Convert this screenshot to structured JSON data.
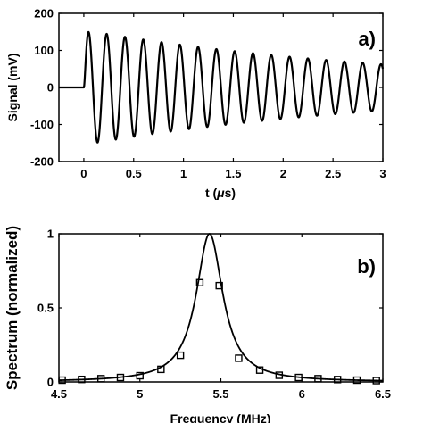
{
  "chart_data": [
    {
      "type": "line",
      "panel_label": "a)",
      "xlabel_prefix": "t (",
      "xlabel_mu": "μ",
      "xlabel_suffix": "s)",
      "ylabel": "Signal (mV)",
      "xlim": [
        -0.25,
        3
      ],
      "ylim": [
        -200,
        200
      ],
      "xticks": [
        0,
        0.5,
        1,
        1.5,
        2,
        2.5,
        3
      ],
      "xtick_labels": [
        "0",
        "0.5",
        "1",
        "1.5",
        "2",
        "2.5",
        "3"
      ],
      "yticks": [
        -200,
        -100,
        0,
        100,
        200
      ],
      "ytick_labels": [
        "-200",
        "-100",
        "0",
        "100",
        "200"
      ],
      "series": [
        {
          "style": "solid-line",
          "color": "#000000",
          "model": "damped-sine",
          "start_time": 0.0,
          "frequency_mhz": 5.45,
          "decay_time_us": 3.3,
          "peak_amplitude_mv": 155
        }
      ]
    },
    {
      "type": "line",
      "panel_label": "b)",
      "xlabel": "Frequency (MHz)",
      "ylabel": "Spectrum (normalized)",
      "xlim": [
        4.5,
        6.5
      ],
      "ylim": [
        0,
        1
      ],
      "xticks": [
        4.5,
        5,
        5.5,
        6,
        6.5
      ],
      "xtick_labels": [
        "4.5",
        "5",
        "5.5",
        "6",
        "6.5"
      ],
      "yticks": [
        0,
        0.5,
        1
      ],
      "ytick_labels": [
        "0",
        "0.5",
        "1"
      ],
      "series": [
        {
          "style": "solid-line",
          "color": "#000000",
          "model": "lorentzian",
          "center_mhz": 5.43,
          "half_width_mhz": 0.1,
          "peak": 1.0
        },
        {
          "style": "open-square-markers",
          "color": "#000000",
          "x": [
            4.52,
            4.64,
            4.76,
            4.88,
            5.0,
            5.13,
            5.25,
            5.37,
            5.49,
            5.61,
            5.74,
            5.86,
            5.98,
            6.1,
            6.22,
            6.34,
            6.46
          ],
          "y": [
            0.012,
            0.017,
            0.022,
            0.03,
            0.042,
            0.085,
            0.18,
            0.67,
            0.65,
            0.16,
            0.08,
            0.045,
            0.03,
            0.022,
            0.016,
            0.012,
            0.009
          ]
        }
      ]
    }
  ]
}
